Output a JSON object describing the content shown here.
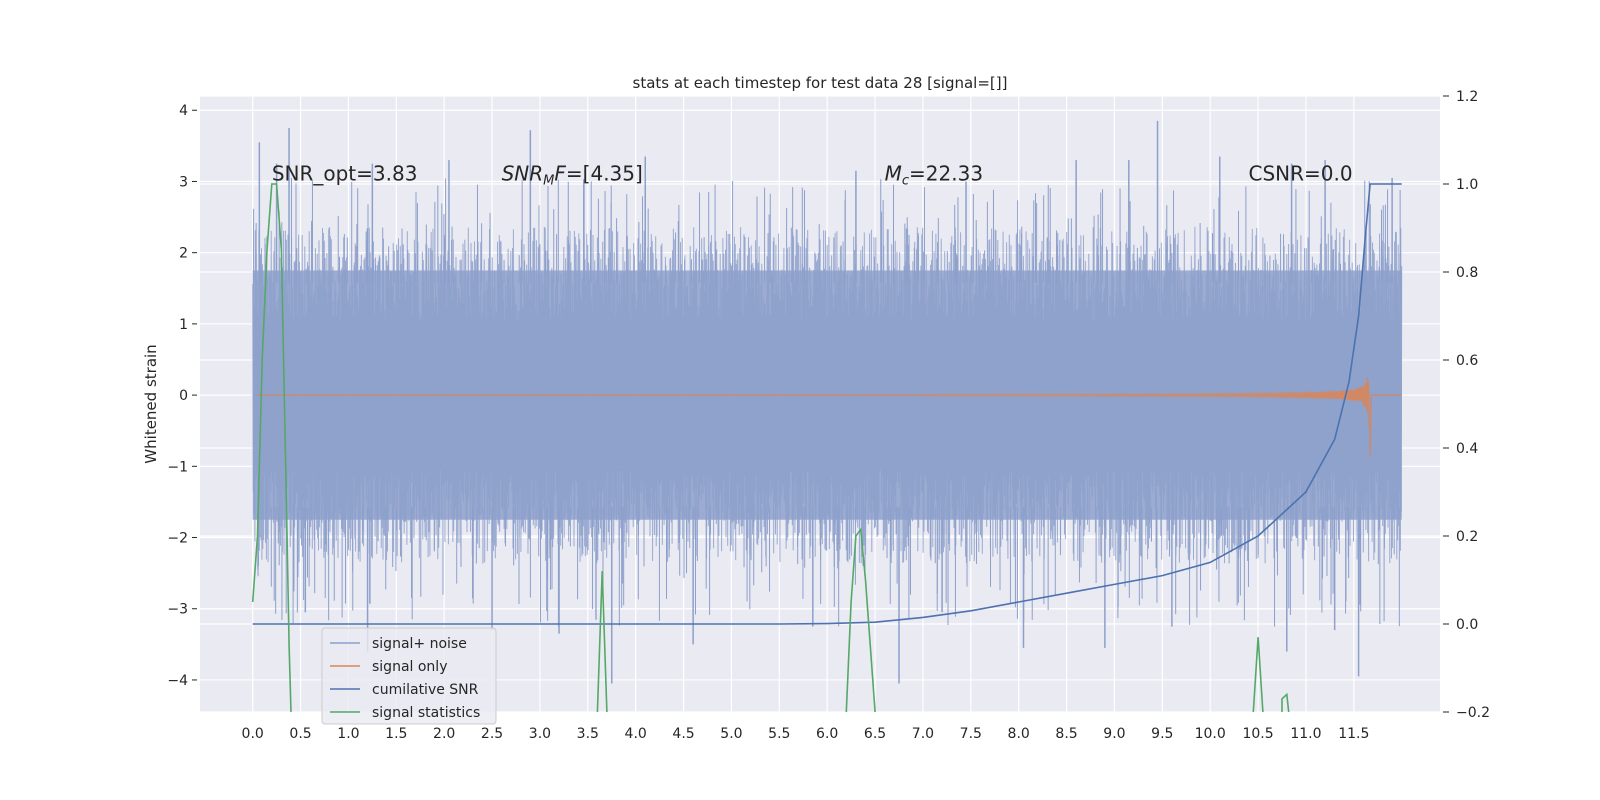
{
  "chart_data": {
    "type": "line",
    "title": "stats at each timestep for test data 28 [signal=[]]",
    "ylabel": "Whitened strain",
    "xlim": [
      -0.55,
      12.4
    ],
    "ylim": [
      -4.45,
      4.2
    ],
    "y2lim": [
      -0.2,
      1.2
    ],
    "xticks": [
      "0.0",
      "0.5",
      "1.0",
      "1.5",
      "2.0",
      "2.5",
      "3.0",
      "3.5",
      "4.0",
      "4.5",
      "5.0",
      "5.5",
      "6.0",
      "6.5",
      "7.0",
      "7.5",
      "8.0",
      "8.5",
      "9.0",
      "9.5",
      "10.0",
      "10.5",
      "11.0",
      "11.5"
    ],
    "yticks": [
      "4",
      "3",
      "2",
      "1",
      "0",
      "−1",
      "−2",
      "−3",
      "−4"
    ],
    "y2ticks": [
      "1.2",
      "1.0",
      "0.8",
      "0.6",
      "0.4",
      "0.2",
      "0.0",
      "−0.2"
    ],
    "grid": true,
    "legend_position": "lower left",
    "annotations": [
      {
        "text": "SNR_opt=3.83",
        "x": 0.2,
        "y": 3.1
      },
      {
        "text": "SNR_MF=[4.35]",
        "x": 2.6,
        "y": 3.1
      },
      {
        "text": "M_c=22.33",
        "x": 6.6,
        "y": 3.1
      },
      {
        "text": "CSNR=0.0",
        "x": 10.4,
        "y": 3.1
      }
    ],
    "series": [
      {
        "name": "signal+ noise",
        "color": "#8da0cb",
        "axis": "left",
        "description_values": {
          "x_range": [
            0.0,
            12.0
          ],
          "typical_amplitude": 1.75,
          "peak_max": 3.85,
          "peak_min": -4.05
        },
        "peaks_high": [
          [
            0.07,
            3.55
          ],
          [
            0.25,
            3.25
          ],
          [
            0.38,
            3.75
          ],
          [
            1.25,
            3.25
          ],
          [
            2.05,
            3.3
          ],
          [
            2.9,
            3.72
          ],
          [
            4.1,
            3.35
          ],
          [
            6.3,
            3.15
          ],
          [
            7.45,
            3.0
          ],
          [
            8.6,
            3.3
          ],
          [
            9.15,
            3.3
          ],
          [
            9.45,
            3.85
          ],
          [
            10.1,
            3.35
          ],
          [
            10.85,
            3.25
          ],
          [
            11.2,
            3.3
          ],
          [
            11.9,
            3.05
          ]
        ],
        "peaks_low": [
          [
            0.55,
            -3.05
          ],
          [
            1.2,
            -3.6
          ],
          [
            2.5,
            -3.3
          ],
          [
            3.2,
            -3.35
          ],
          [
            3.75,
            -4.05
          ],
          [
            4.6,
            -3.5
          ],
          [
            5.85,
            -3.25
          ],
          [
            6.75,
            -4.05
          ],
          [
            7.2,
            -3.05
          ],
          [
            8.05,
            -3.55
          ],
          [
            8.9,
            -3.55
          ],
          [
            9.6,
            -3.25
          ],
          [
            10.8,
            -3.6
          ],
          [
            11.3,
            -3.3
          ],
          [
            11.55,
            -3.95
          ]
        ]
      },
      {
        "name": "signal only",
        "color": "#dd8452",
        "axis": "left",
        "chirp_end": 11.67,
        "peak_amplitude": 0.85
      },
      {
        "name": "cumilative SNR",
        "color": "#4c72b0",
        "axis": "right",
        "points": [
          [
            0.0,
            0.0
          ],
          [
            4.0,
            0.0
          ],
          [
            5.5,
            0.0
          ],
          [
            6.0,
            0.001
          ],
          [
            6.5,
            0.004
          ],
          [
            7.0,
            0.015
          ],
          [
            7.5,
            0.03
          ],
          [
            8.0,
            0.05
          ],
          [
            8.5,
            0.07
          ],
          [
            9.0,
            0.09
          ],
          [
            9.5,
            0.11
          ],
          [
            10.0,
            0.14
          ],
          [
            10.5,
            0.2
          ],
          [
            11.0,
            0.3
          ],
          [
            11.3,
            0.42
          ],
          [
            11.45,
            0.55
          ],
          [
            11.55,
            0.7
          ],
          [
            11.62,
            0.88
          ],
          [
            11.67,
            1.0
          ],
          [
            12.0,
            1.0
          ]
        ]
      },
      {
        "name": "signal statistics",
        "color": "#55a868",
        "axis": "right",
        "segments": [
          [
            [
              0.0,
              0.05
            ],
            [
              0.05,
              0.2
            ],
            [
              0.1,
              0.6
            ],
            [
              0.15,
              0.85
            ],
            [
              0.2,
              1.0
            ],
            [
              0.25,
              1.0
            ],
            [
              0.3,
              0.85
            ],
            [
              0.35,
              0.3
            ],
            [
              0.38,
              -0.05
            ],
            [
              0.4,
              -0.2
            ]
          ],
          [
            [
              3.6,
              -0.2
            ],
            [
              3.65,
              0.12
            ],
            [
              3.7,
              -0.2
            ]
          ],
          [
            [
              6.2,
              -0.2
            ],
            [
              6.25,
              0.05
            ],
            [
              6.3,
              0.2
            ],
            [
              6.35,
              0.215
            ],
            [
              6.4,
              0.1
            ],
            [
              6.5,
              -0.2
            ]
          ],
          [
            [
              10.45,
              -0.2
            ],
            [
              10.5,
              -0.03
            ],
            [
              10.55,
              -0.2
            ]
          ],
          [
            [
              10.75,
              -0.2
            ],
            [
              10.75,
              -0.17
            ],
            [
              10.8,
              -0.16
            ],
            [
              10.82,
              -0.2
            ]
          ]
        ]
      }
    ]
  }
}
